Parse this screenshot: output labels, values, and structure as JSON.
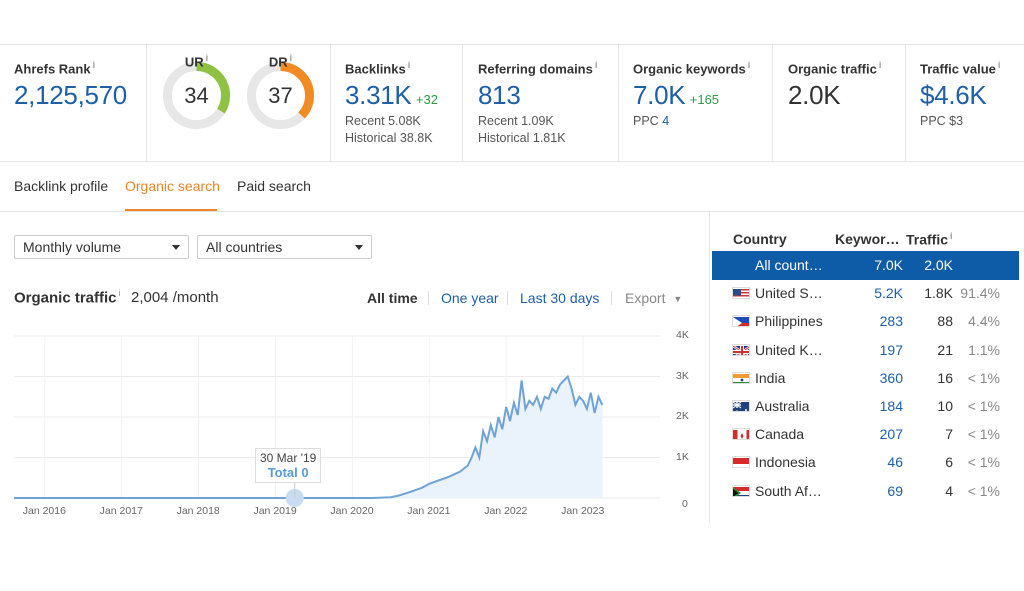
{
  "stats": {
    "ahrefs_rank": {
      "label": "Ahrefs Rank",
      "value": "2,125,570"
    },
    "ur": {
      "label": "UR",
      "value": "34",
      "fraction": 0.34,
      "color": "#8ec144"
    },
    "dr": {
      "label": "DR",
      "value": "37",
      "fraction": 0.37,
      "color": "#f28b24"
    },
    "backlinks": {
      "label": "Backlinks",
      "value": "3.31K",
      "delta": "+32",
      "recent": "Recent 5.08K",
      "historical": "Historical 38.8K"
    },
    "referring_domains": {
      "label": "Referring domains",
      "value": "813",
      "recent": "Recent 1.09K",
      "historical": "Historical 1.81K"
    },
    "organic_keywords": {
      "label": "Organic keywords",
      "value": "7.0K",
      "delta": "+165",
      "ppc_label": "PPC",
      "ppc_value": "4"
    },
    "organic_traffic": {
      "label": "Organic traffic",
      "value": "2.0K"
    },
    "traffic_value": {
      "label": "Traffic value",
      "value": "$4.6K",
      "ppc": "PPC $3"
    }
  },
  "tabs": [
    {
      "label": "Backlink profile",
      "active": false
    },
    {
      "label": "Organic search",
      "active": true
    },
    {
      "label": "Paid search",
      "active": false
    }
  ],
  "filters": {
    "volume": "Monthly volume",
    "country": "All countries"
  },
  "chart_header": {
    "title": "Organic traffic",
    "value": "2,004 /month",
    "ranges": [
      "All time",
      "One year",
      "Last 30 days"
    ],
    "export": "Export"
  },
  "tooltip": {
    "date": "30 Mar '19",
    "total": "Total 0"
  },
  "chart_data": {
    "type": "area",
    "x_ticks": [
      "Jan 2016",
      "Jan 2017",
      "Jan 2018",
      "Jan 2019",
      "Jan 2020",
      "Jan 2021",
      "Jan 2022",
      "Jan 2023"
    ],
    "y_ticks": [
      "4K",
      "3K",
      "2K",
      "1K",
      "0"
    ],
    "ylim": [
      0,
      4000
    ],
    "xlim": [
      2015.6,
      2024.0
    ],
    "grid": true,
    "series": [
      {
        "color": "#6fa3d8",
        "x": [
          2015.6,
          2019.0,
          2019.25,
          2019.5,
          2019.75,
          2020.0,
          2020.25,
          2020.5,
          2020.6,
          2020.75,
          2020.9,
          2021.0,
          2021.1,
          2021.25,
          2021.4,
          2021.5,
          2021.55,
          2021.6,
          2021.65,
          2021.7,
          2021.75,
          2021.8,
          2021.85,
          2021.9,
          2021.95,
          2022.0,
          2022.05,
          2022.1,
          2022.15,
          2022.2,
          2022.25,
          2022.3,
          2022.35,
          2022.4,
          2022.45,
          2022.5,
          2022.55,
          2022.6,
          2022.65,
          2022.7,
          2022.75,
          2022.8,
          2022.85,
          2022.9,
          2022.95,
          2023.0,
          2023.05,
          2023.1,
          2023.15,
          2023.2,
          2023.25
        ],
        "y": [
          0,
          0,
          0,
          0,
          0,
          0,
          0,
          20,
          60,
          150,
          250,
          350,
          420,
          520,
          650,
          800,
          1000,
          1250,
          1000,
          1650,
          1400,
          1800,
          1500,
          2000,
          1700,
          2250,
          1900,
          2350,
          2050,
          2900,
          2200,
          2400,
          2300,
          2500,
          2200,
          2500,
          2450,
          2700,
          2600,
          2800,
          2900,
          3000,
          2700,
          2300,
          2500,
          2400,
          2200,
          2600,
          2100,
          2500,
          2300
        ]
      }
    ]
  },
  "table": {
    "headers": [
      "Country",
      "Keywor…",
      "Traffic"
    ],
    "rows": [
      {
        "country": "All count…",
        "keywords": "7.0K",
        "traffic": "2.0K",
        "pct": "",
        "flag": "none",
        "selected": true
      },
      {
        "country": "United S…",
        "keywords": "5.2K",
        "traffic": "1.8K",
        "pct": "91.4%",
        "flag": "us"
      },
      {
        "country": "Philippines",
        "keywords": "283",
        "traffic": "88",
        "pct": "4.4%",
        "flag": "ph"
      },
      {
        "country": "United K…",
        "keywords": "197",
        "traffic": "21",
        "pct": "1.1%",
        "flag": "uk"
      },
      {
        "country": "India",
        "keywords": "360",
        "traffic": "16",
        "pct": "< 1%",
        "flag": "in"
      },
      {
        "country": "Australia",
        "keywords": "184",
        "traffic": "10",
        "pct": "< 1%",
        "flag": "au"
      },
      {
        "country": "Canada",
        "keywords": "207",
        "traffic": "7",
        "pct": "< 1%",
        "flag": "ca"
      },
      {
        "country": "Indonesia",
        "keywords": "46",
        "traffic": "6",
        "pct": "< 1%",
        "flag": "id"
      },
      {
        "country": "South Af…",
        "keywords": "69",
        "traffic": "4",
        "pct": "< 1%",
        "flag": "za"
      }
    ]
  }
}
